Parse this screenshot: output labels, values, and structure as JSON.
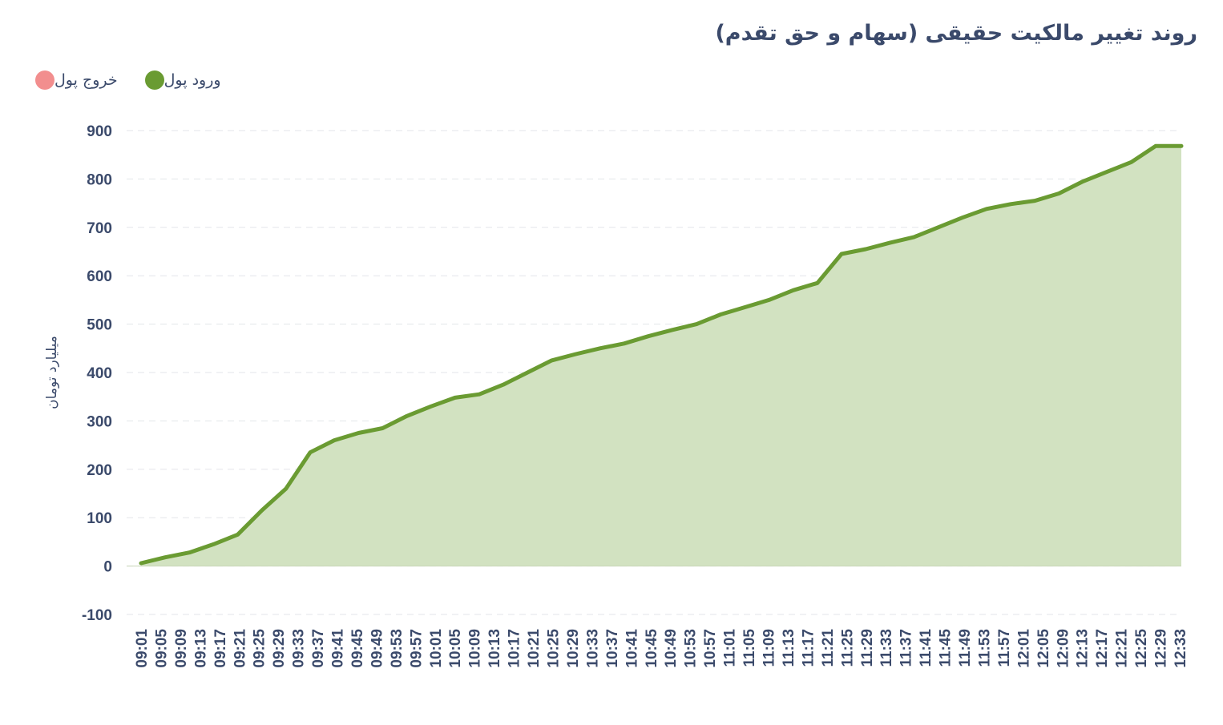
{
  "title": "روند تغییر مالکیت حقیقی (سهام و حق تقدم)",
  "legend": [
    {
      "label": "خروج پول",
      "color": "#f28e8e"
    },
    {
      "label": "ورود پول",
      "color": "#6a9b32"
    }
  ],
  "chart_data": {
    "type": "area",
    "title": "روند تغییر مالکیت حقیقی (سهام و حق تقدم)",
    "ylabel": "میلیارد تومان",
    "xlabel": "",
    "ylim": [
      -100,
      900
    ],
    "yticks": [
      -100,
      0,
      100,
      200,
      300,
      400,
      500,
      600,
      700,
      800,
      900
    ],
    "grid": true,
    "legend_position": "top-left",
    "xticks": [
      "09:01",
      "09:05",
      "09:09",
      "09:13",
      "09:17",
      "09:21",
      "09:25",
      "09:29",
      "09:33",
      "09:37",
      "09:41",
      "09:45",
      "09:49",
      "09:53",
      "09:57",
      "10:01",
      "10:05",
      "10:09",
      "10:13",
      "10:17",
      "10:21",
      "10:25",
      "10:29",
      "10:33",
      "10:37",
      "10:41",
      "10:45",
      "10:49",
      "10:53",
      "10:57",
      "11:01",
      "11:05",
      "11:09",
      "11:13",
      "11:17",
      "11:21",
      "11:25",
      "11:29",
      "11:33",
      "11:37",
      "11:41",
      "11:45",
      "11:49",
      "11:53",
      "11:57",
      "12:01",
      "12:05",
      "12:09",
      "12:13",
      "12:17",
      "12:21",
      "12:25",
      "12:29",
      "12:33"
    ],
    "series": [
      {
        "name": "ورود پول",
        "color": "#6a9b32",
        "fill": "#d2e2c1",
        "values": [
          6,
          18,
          28,
          45,
          65,
          115,
          160,
          235,
          260,
          275,
          285,
          310,
          330,
          348,
          355,
          375,
          400,
          425,
          438,
          450,
          460,
          475,
          488,
          500,
          520,
          535,
          550,
          570,
          585,
          645,
          655,
          668,
          680,
          700,
          720,
          738,
          748,
          755,
          770,
          795,
          815,
          835,
          868,
          868
        ]
      },
      {
        "name": "خروج پول",
        "color": "#f28e8e",
        "values": []
      }
    ]
  }
}
